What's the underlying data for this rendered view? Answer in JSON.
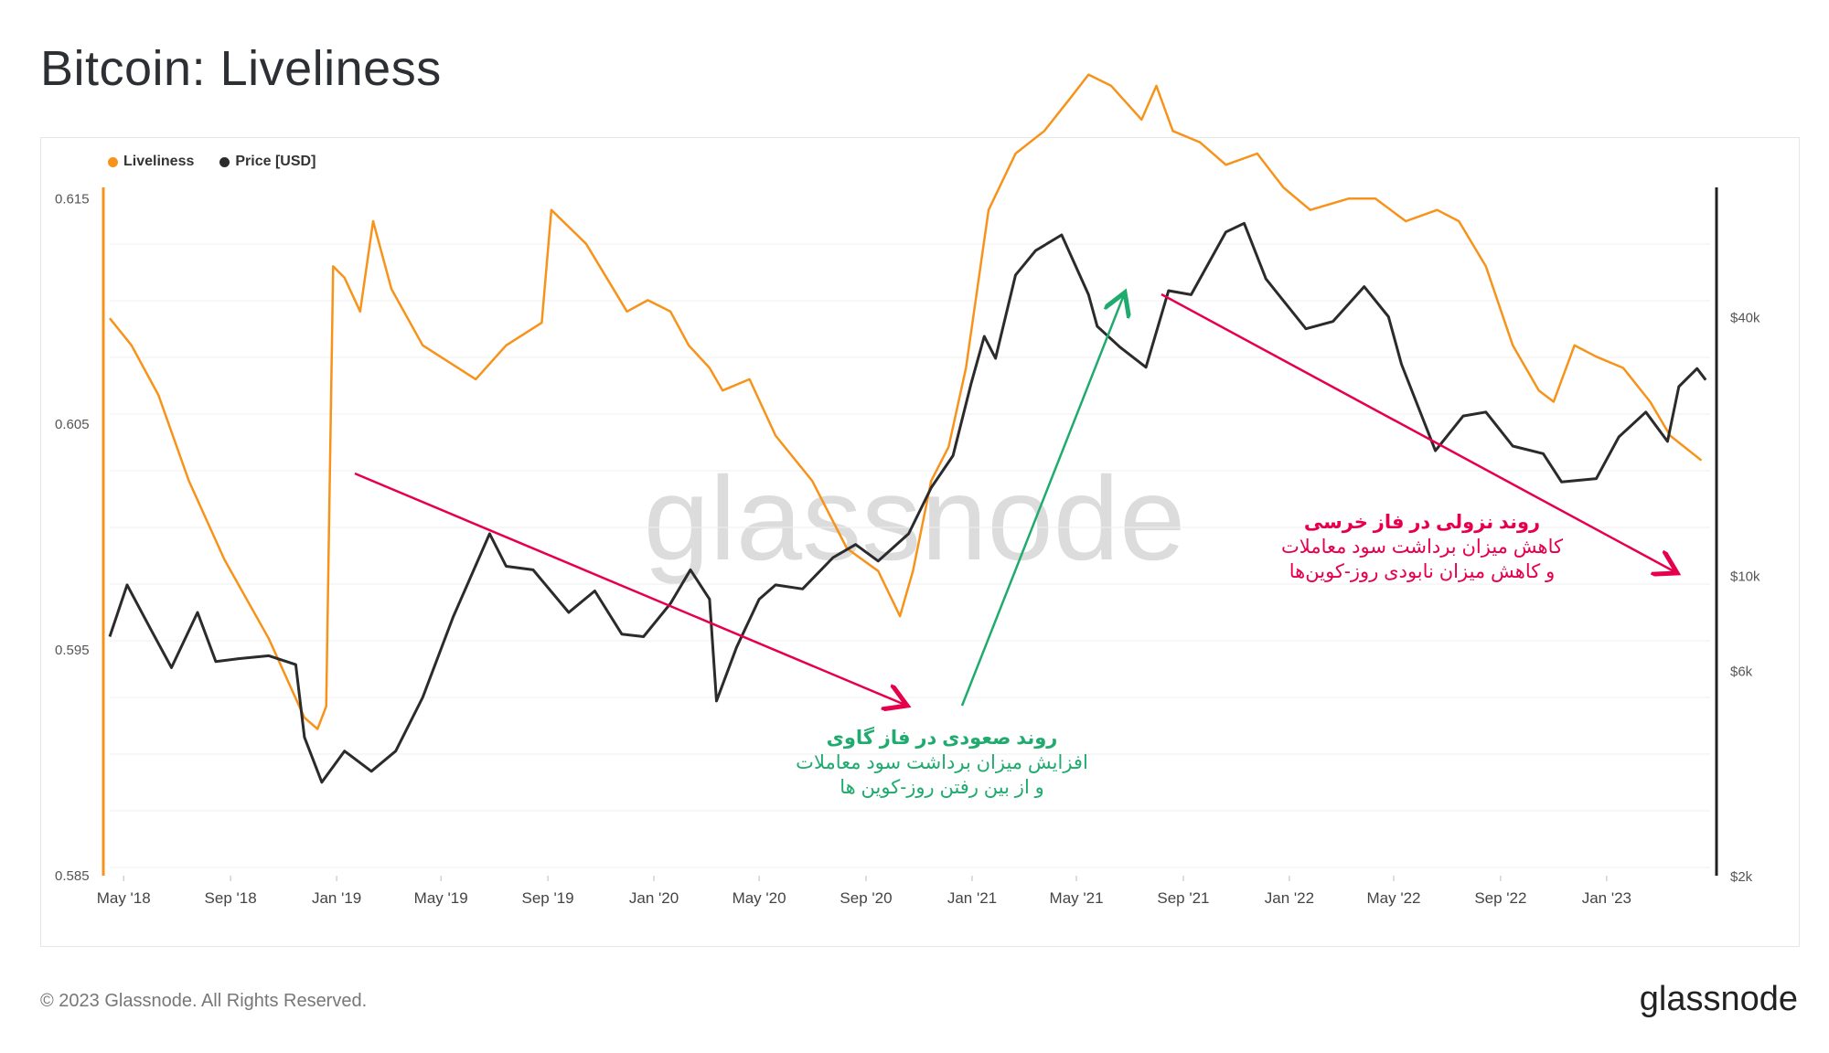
{
  "title": "Bitcoin: Liveliness",
  "footer": {
    "copyright": "© 2023 Glassnode. All Rights Reserved.",
    "brand": "glassnode"
  },
  "watermark": "glassnode",
  "colors": {
    "liveliness": "#f7931a",
    "price": "#2b2b2b",
    "bear": "#e6004c",
    "bull": "#1faa6e"
  },
  "annotations": {
    "bull": {
      "title": "روند صعودی در فاز گاوی",
      "line1": "افزایش میزان برداشت سود معاملات",
      "line2": "و از بین رفتن روز-کوین ها"
    },
    "bear": {
      "title": "روند نزولی در فاز خرسی",
      "line1": "کاهش میزان برداشت سود معاملات",
      "line2": "و کاهش میزان نابودی روز-کوین‌ها"
    }
  },
  "chart_data": {
    "type": "line",
    "title": "Bitcoin: Liveliness",
    "legend_position": "top-left",
    "grid": true,
    "x_ticks": [
      "May '18",
      "Sep '18",
      "Jan '19",
      "May '19",
      "Sep '19",
      "Jan '20",
      "May '20",
      "Sep '20",
      "Jan '21",
      "May '21",
      "Sep '21",
      "Jan '22",
      "May '22",
      "Sep '22",
      "Jan '23"
    ],
    "x_range": [
      "2018-04-15",
      "2023-04-30"
    ],
    "y_left": {
      "ticks": [
        "0.615",
        "0.605",
        "0.595",
        "0.585"
      ],
      "range": [
        0.585,
        0.6155
      ]
    },
    "y_right": {
      "scale": "log",
      "ticks": [
        "$40k",
        "$10k",
        "$6k",
        "$2k"
      ],
      "tick_values": [
        40000,
        10000,
        6000,
        2000
      ],
      "range": [
        2000,
        80000
      ]
    },
    "series": [
      {
        "name": "Liveliness",
        "axis": "left",
        "points": [
          [
            "2018-04-15",
            0.6097
          ],
          [
            "2018-05-10",
            0.6085
          ],
          [
            "2018-06-10",
            0.6063
          ],
          [
            "2018-07-15",
            0.6025
          ],
          [
            "2018-08-25",
            0.599
          ],
          [
            "2018-10-15",
            0.5955
          ],
          [
            "2018-11-25",
            0.592
          ],
          [
            "2018-12-10",
            0.5915
          ],
          [
            "2018-12-20",
            0.5925
          ],
          [
            "2018-12-28",
            0.612
          ],
          [
            "2019-01-10",
            0.6115
          ],
          [
            "2019-01-28",
            0.61
          ],
          [
            "2019-02-12",
            0.614
          ],
          [
            "2019-03-05",
            0.611
          ],
          [
            "2019-04-10",
            0.6085
          ],
          [
            "2019-06-10",
            0.607
          ],
          [
            "2019-07-15",
            0.6085
          ],
          [
            "2019-08-25",
            0.6095
          ],
          [
            "2019-09-05",
            0.6145
          ],
          [
            "2019-10-15",
            0.613
          ],
          [
            "2019-12-01",
            0.61
          ],
          [
            "2019-12-25",
            0.6105
          ],
          [
            "2020-01-20",
            0.61
          ],
          [
            "2020-02-10",
            0.6085
          ],
          [
            "2020-03-05",
            0.6075
          ],
          [
            "2020-03-20",
            0.6065
          ],
          [
            "2020-04-20",
            0.607
          ],
          [
            "2020-05-20",
            0.6045
          ],
          [
            "2020-07-01",
            0.6025
          ],
          [
            "2020-08-10",
            0.5995
          ],
          [
            "2020-09-15",
            0.5985
          ],
          [
            "2020-10-10",
            0.5965
          ],
          [
            "2020-10-25",
            0.5985
          ],
          [
            "2020-11-15",
            0.6025
          ],
          [
            "2020-12-05",
            0.604
          ],
          [
            "2020-12-25",
            0.6075
          ],
          [
            "2021-01-20",
            0.6145
          ],
          [
            "2021-02-20",
            0.617
          ],
          [
            "2021-03-25",
            0.618
          ],
          [
            "2021-04-25",
            0.6195
          ],
          [
            "2021-05-15",
            0.6205
          ],
          [
            "2021-06-10",
            0.62
          ],
          [
            "2021-07-15",
            0.6185
          ],
          [
            "2021-08-01",
            0.62
          ],
          [
            "2021-08-20",
            0.618
          ],
          [
            "2021-09-20",
            0.6175
          ],
          [
            "2021-10-20",
            0.6165
          ],
          [
            "2021-11-25",
            0.617
          ],
          [
            "2021-12-25",
            0.6155
          ],
          [
            "2022-01-25",
            0.6145
          ],
          [
            "2022-03-10",
            0.615
          ],
          [
            "2022-04-10",
            0.615
          ],
          [
            "2022-05-15",
            0.614
          ],
          [
            "2022-06-20",
            0.6145
          ],
          [
            "2022-07-15",
            0.614
          ],
          [
            "2022-08-15",
            0.612
          ],
          [
            "2022-09-15",
            0.6085
          ],
          [
            "2022-10-15",
            0.6065
          ],
          [
            "2022-11-01",
            0.606
          ],
          [
            "2022-11-25",
            0.6085
          ],
          [
            "2022-12-20",
            0.608
          ],
          [
            "2023-01-20",
            0.6075
          ],
          [
            "2023-02-20",
            0.606
          ],
          [
            "2023-03-15",
            0.6045
          ],
          [
            "2023-04-20",
            0.6034
          ]
        ]
      },
      {
        "name": "Price [USD]",
        "axis": "right",
        "points": [
          [
            "2018-04-15",
            7200
          ],
          [
            "2018-05-05",
            9500
          ],
          [
            "2018-06-01",
            7500
          ],
          [
            "2018-06-25",
            6100
          ],
          [
            "2018-07-25",
            8200
          ],
          [
            "2018-08-15",
            6300
          ],
          [
            "2018-09-10",
            6400
          ],
          [
            "2018-10-15",
            6500
          ],
          [
            "2018-11-15",
            6200
          ],
          [
            "2018-11-25",
            4200
          ],
          [
            "2018-12-15",
            3300
          ],
          [
            "2019-01-10",
            3900
          ],
          [
            "2019-02-10",
            3500
          ],
          [
            "2019-03-10",
            3900
          ],
          [
            "2019-04-10",
            5200
          ],
          [
            "2019-05-15",
            8000
          ],
          [
            "2019-06-26",
            12500
          ],
          [
            "2019-07-15",
            10500
          ],
          [
            "2019-08-15",
            10300
          ],
          [
            "2019-09-25",
            8200
          ],
          [
            "2019-10-25",
            9200
          ],
          [
            "2019-11-25",
            7300
          ],
          [
            "2019-12-20",
            7200
          ],
          [
            "2020-01-20",
            8600
          ],
          [
            "2020-02-12",
            10300
          ],
          [
            "2020-03-05",
            8800
          ],
          [
            "2020-03-13",
            5100
          ],
          [
            "2020-04-05",
            6800
          ],
          [
            "2020-05-01",
            8800
          ],
          [
            "2020-05-20",
            9500
          ],
          [
            "2020-06-20",
            9300
          ],
          [
            "2020-07-25",
            11000
          ],
          [
            "2020-08-20",
            11800
          ],
          [
            "2020-09-15",
            10800
          ],
          [
            "2020-10-20",
            12500
          ],
          [
            "2020-11-15",
            16000
          ],
          [
            "2020-12-10",
            19000
          ],
          [
            "2020-12-31",
            28000
          ],
          [
            "2021-01-15",
            36000
          ],
          [
            "2021-01-28",
            32000
          ],
          [
            "2021-02-20",
            50000
          ],
          [
            "2021-03-15",
            57000
          ],
          [
            "2021-04-14",
            62000
          ],
          [
            "2021-05-15",
            45000
          ],
          [
            "2021-05-25",
            38000
          ],
          [
            "2021-06-20",
            34000
          ],
          [
            "2021-07-20",
            30500
          ],
          [
            "2021-08-15",
            46000
          ],
          [
            "2021-09-10",
            45000
          ],
          [
            "2021-10-20",
            63000
          ],
          [
            "2021-11-10",
            66000
          ],
          [
            "2021-12-05",
            49000
          ],
          [
            "2022-01-20",
            37500
          ],
          [
            "2022-02-20",
            39000
          ],
          [
            "2022-03-28",
            47000
          ],
          [
            "2022-04-25",
            40000
          ],
          [
            "2022-05-10",
            31000
          ],
          [
            "2022-06-18",
            19500
          ],
          [
            "2022-07-20",
            23500
          ],
          [
            "2022-08-15",
            24000
          ],
          [
            "2022-09-15",
            20000
          ],
          [
            "2022-10-20",
            19200
          ],
          [
            "2022-11-10",
            16500
          ],
          [
            "2022-12-20",
            16800
          ],
          [
            "2023-01-15",
            21000
          ],
          [
            "2023-02-15",
            24000
          ],
          [
            "2023-03-12",
            20500
          ],
          [
            "2023-03-25",
            27500
          ],
          [
            "2023-04-15",
            30300
          ],
          [
            "2023-04-25",
            28500
          ]
        ]
      }
    ]
  }
}
